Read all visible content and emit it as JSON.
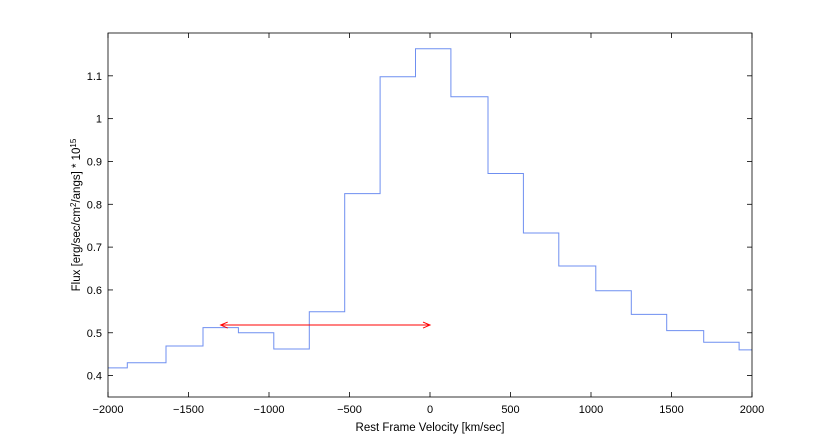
{
  "chart_data": {
    "type": "line",
    "style": "step",
    "xlabel": "Rest Frame Velocity [km/sec]",
    "ylabel": {
      "prefix": "Flux [erg/sec/cm",
      "sup1": "2",
      "middle": "/angs] * 10",
      "sup2": "15"
    },
    "xlim": [
      -2000,
      2000
    ],
    "ylim": [
      0.35,
      1.2
    ],
    "xticks": [
      -2000,
      -1500,
      -1000,
      -500,
      0,
      500,
      1000,
      1500,
      2000
    ],
    "xtick_labels": [
      "−2000",
      "−1500",
      "−1000",
      "−500",
      "0",
      "500",
      "1000",
      "1500",
      "2000"
    ],
    "yticks": [
      0.4,
      0.5,
      0.6,
      0.7,
      0.8,
      0.9,
      1.0,
      1.1
    ],
    "ytick_labels": [
      "0.4",
      "0.5",
      "0.6",
      "0.7",
      "0.8",
      "0.9",
      "1",
      "1.1"
    ],
    "grid": false,
    "series": [
      {
        "color": "#6f8ff0",
        "steps": [
          {
            "x0": -2000,
            "x1": -1880,
            "y": 0.418
          },
          {
            "x0": -1880,
            "x1": -1640,
            "y": 0.43
          },
          {
            "x0": -1640,
            "x1": -1410,
            "y": 0.469
          },
          {
            "x0": -1410,
            "x1": -1190,
            "y": 0.512
          },
          {
            "x0": -1190,
            "x1": -1190,
            "y": 0.508
          },
          {
            "x0": -1190,
            "x1": -970,
            "y": 0.5
          },
          {
            "x0": -970,
            "x1": -750,
            "y": 0.462
          },
          {
            "x0": -750,
            "x1": -530,
            "y": 0.549
          },
          {
            "x0": -530,
            "x1": -310,
            "y": 0.825
          },
          {
            "x0": -310,
            "x1": -90,
            "y": 1.098
          },
          {
            "x0": -90,
            "x1": 130,
            "y": 1.163
          },
          {
            "x0": 130,
            "x1": 360,
            "y": 1.051
          },
          {
            "x0": 360,
            "x1": 580,
            "y": 0.872
          },
          {
            "x0": 580,
            "x1": 800,
            "y": 0.733
          },
          {
            "x0": 800,
            "x1": 1030,
            "y": 0.656
          },
          {
            "x0": 1030,
            "x1": 1250,
            "y": 0.598
          },
          {
            "x0": 1250,
            "x1": 1470,
            "y": 0.543
          },
          {
            "x0": 1470,
            "x1": 1700,
            "y": 0.505
          },
          {
            "x0": 1700,
            "x1": 1920,
            "y": 0.478
          },
          {
            "x0": 1920,
            "x1": 2000,
            "y": 0.46
          }
        ]
      }
    ],
    "annotations": [
      {
        "type": "double-arrow",
        "color": "#ff0000",
        "x0": -1300,
        "x1": 0,
        "y": 0.518
      }
    ]
  }
}
